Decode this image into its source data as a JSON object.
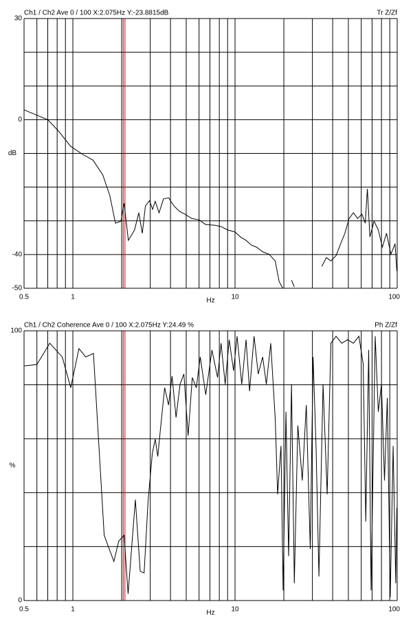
{
  "chart_data": [
    {
      "type": "line",
      "title": "Ch1 / Ch2  Ave 0 / 100  X:2.075Hz  Y:-23.8815dB",
      "corner_label": "Tr Z/Zf",
      "ylabel": "dB",
      "xlabel": "Hz",
      "xscale": "log",
      "xlim": [
        0.5,
        100
      ],
      "xticks": [
        0.5,
        1,
        10,
        100
      ],
      "xgrid": [
        0.6,
        0.7,
        0.8,
        0.9,
        2,
        3,
        4,
        5,
        6,
        7,
        8,
        9,
        20,
        30,
        40,
        50,
        60,
        70,
        80,
        90
      ],
      "ylim": [
        -50,
        30
      ],
      "yticks": [
        30,
        0,
        -40,
        -50
      ],
      "ygrid": [
        20,
        10,
        -10,
        -20,
        -30
      ],
      "cursor_x": 2.075,
      "cursor_color": "#d00000",
      "x": [
        0.5,
        0.7,
        0.81,
        0.97,
        1.15,
        1.33,
        1.53,
        1.69,
        1.83,
        1.98,
        2.07,
        2.2,
        2.4,
        2.55,
        2.68,
        2.8,
        2.97,
        3.1,
        3.22,
        3.4,
        3.62,
        3.9,
        4.2,
        4.55,
        4.9,
        5.4,
        6.0,
        6.6,
        7.5,
        8.2,
        9.0,
        10.0,
        10.8,
        11.7,
        12.6,
        13.6,
        14.8,
        16.2,
        17.7,
        18.7,
        19.7,
        20.5,
        22.3,
        23.2,
        28,
        34.3,
        36.6,
        39,
        42,
        44.8,
        47.6,
        50.5,
        53.7,
        57,
        60.6,
        63.5,
        65.5,
        67.9,
        72,
        76.5,
        81,
        86,
        91.4,
        97,
        99.5
      ],
      "series": [
        {
          "color": "#000000",
          "values": [
            2.9,
            0,
            -3.2,
            -7.9,
            -10.3,
            -12,
            -16.4,
            -22.5,
            -30.7,
            -30.1,
            -24.8,
            -35.8,
            -32.7,
            -27.6,
            -33.7,
            -25.6,
            -24,
            -26.6,
            -24.2,
            -27.6,
            -23.5,
            -23.2,
            -25.6,
            -27.2,
            -28,
            -29.3,
            -29.7,
            -31.1,
            -31.3,
            -31.7,
            -32.7,
            -33.3,
            -34.8,
            -35.8,
            -37.2,
            -37.8,
            -39.2,
            -39.9,
            -41.9,
            -48,
            -50,
            null,
            -47.6,
            -49.6,
            null,
            -43.5,
            -40.9,
            -41.9,
            -40.3,
            -36.8,
            -33.7,
            -29.3,
            -27.6,
            -29.3,
            -28,
            -30.7,
            -20.5,
            -34.8,
            -30.1,
            -32.7,
            -37.8,
            -33.7,
            -39.9,
            -36.8,
            -44.9
          ]
        }
      ]
    },
    {
      "type": "line",
      "title": "Ch1 / Ch2  Coherence Ave 0 / 100  X:2.075Hz  Y:24.49 %",
      "corner_label": "Ph Z/Zf",
      "ylabel": "%",
      "xlabel": "Hz",
      "xscale": "log",
      "xlim": [
        0.5,
        100
      ],
      "xticks": [
        0.5,
        1,
        10,
        100
      ],
      "xgrid": [
        0.6,
        0.7,
        0.8,
        0.9,
        2,
        3,
        4,
        5,
        6,
        7,
        8,
        9,
        20,
        30,
        40,
        50,
        60,
        70,
        80,
        90
      ],
      "ylim": [
        0,
        100
      ],
      "yticks": [
        100,
        0
      ],
      "ygrid": [
        80,
        60,
        40,
        20
      ],
      "cursor_x": 2.075,
      "cursor_color": "#d00000",
      "x": [
        0.5,
        0.6,
        0.72,
        0.86,
        0.97,
        1.09,
        1.2,
        1.34,
        1.56,
        1.79,
        1.92,
        2.07,
        2.19,
        2.43,
        2.6,
        2.75,
        2.91,
        3.09,
        3.22,
        3.34,
        3.47,
        3.68,
        3.89,
        4.09,
        4.33,
        4.58,
        4.84,
        5.14,
        5.45,
        5.77,
        6.1,
        6.6,
        7.2,
        7.8,
        8.2,
        8.7,
        9.2,
        9.8,
        10.3,
        11,
        11.7,
        12.3,
        13.1,
        13.9,
        14.8,
        15.6,
        16.6,
        17.7,
        18.3,
        19.2,
        19.8,
        20.6,
        21.4,
        22.3,
        23.2,
        24.4,
        26,
        27.5,
        29.1,
        30.3,
        31.6,
        32.9,
        34.9,
        37,
        39,
        42,
        45.5,
        49.4,
        53.7,
        58,
        61.7,
        64,
        66.7,
        69,
        73.2,
        76.5,
        80,
        83.5,
        86.9,
        90.6,
        94.4,
        98,
        99.5
      ],
      "series": [
        {
          "color": "#000000",
          "values": [
            87,
            87.5,
            95.4,
            90.3,
            78.9,
            93.4,
            90.3,
            91.6,
            24.2,
            14.5,
            22.1,
            24.2,
            2.5,
            37.4,
            10.9,
            10.2,
            36.9,
            54.7,
            59.8,
            53.4,
            63.6,
            78.9,
            72.5,
            83.2,
            67.9,
            80.2,
            84,
            61.1,
            82.7,
            78.9,
            90.3,
            76.3,
            92.9,
            82.7,
            95.4,
            80.2,
            96.7,
            85.2,
            98,
            80.2,
            96.7,
            77.6,
            98,
            84,
            90.3,
            80.2,
            95.4,
            67.4,
            39.4,
            57.3,
            3.8,
            70,
            16.5,
            80.2,
            6.4,
            64.9,
            44.5,
            72.5,
            19.1,
            90.3,
            57.3,
            8.9,
            80.2,
            39.4,
            95.4,
            98,
            95.4,
            96.7,
            95.4,
            98,
            87.8,
            29.3,
            92.9,
            3.8,
            98,
            70,
            80.2,
            44.5,
            75.1,
            1.3,
            57.3,
            6.4,
            34.4
          ]
        }
      ]
    }
  ]
}
